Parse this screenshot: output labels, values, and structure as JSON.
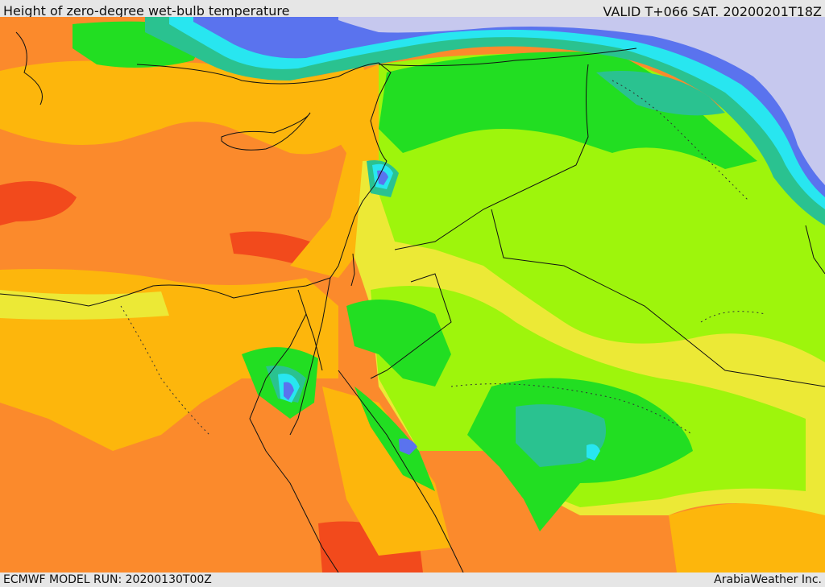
{
  "header": {
    "title": "Height of zero-degree wet-bulb temperature",
    "valid_time": "VALID T+066 SAT. 20200201T18Z"
  },
  "footer": {
    "model_run": "ECMWF MODEL RUN: 20200130T00Z",
    "credit": "ArabiaWeather Inc."
  },
  "colors": {
    "sea_low": "#f24a1c",
    "orange": "#fb8a2c",
    "amber": "#fdb60c",
    "yellow": "#ece936",
    "lime": "#9ef50c",
    "green": "#22de22",
    "teal": "#2ac290",
    "cyan": "#28e6f0",
    "blue": "#5a73ee",
    "lavender": "#c6c8ee",
    "border": "#111111"
  }
}
